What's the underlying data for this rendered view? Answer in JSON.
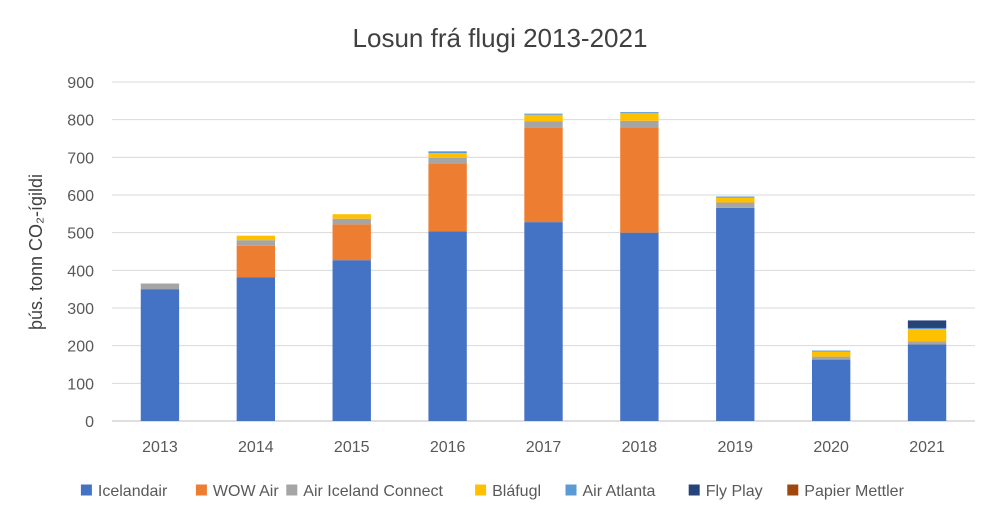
{
  "chart_data": {
    "type": "bar",
    "stacked": true,
    "title": "Losun frá flugi 2013-2021",
    "xlabel": "",
    "ylabel": "þús. tonn CO₂-ígildi",
    "ylim": [
      0,
      900
    ],
    "yticks": [
      0,
      100,
      200,
      300,
      400,
      500,
      600,
      700,
      800,
      900
    ],
    "grid": true,
    "legend_position": "bottom",
    "categories": [
      "2013",
      "2014",
      "2015",
      "2016",
      "2017",
      "2018",
      "2019",
      "2020",
      "2021"
    ],
    "series": [
      {
        "name": "Icelandair",
        "color": "#4472C4",
        "values": [
          350,
          381,
          427,
          503,
          528,
          500,
          566,
          163,
          203
        ]
      },
      {
        "name": "WOW Air",
        "color": "#ED7D31",
        "values": [
          0,
          84,
          95,
          181,
          250,
          280,
          0,
          0,
          0
        ]
      },
      {
        "name": "Air Iceland Connect",
        "color": "#A5A5A5",
        "values": [
          15,
          15,
          15,
          15,
          18,
          17,
          14,
          8,
          8
        ]
      },
      {
        "name": "Bláfugl",
        "color": "#FFC000",
        "values": [
          0,
          12,
          12,
          12,
          17,
          20,
          13,
          13,
          33
        ]
      },
      {
        "name": "Air Atlanta",
        "color": "#5B9BD5",
        "values": [
          0,
          0,
          0,
          5,
          3,
          3,
          3,
          3,
          3
        ]
      },
      {
        "name": "Fly Play",
        "color": "#264478",
        "values": [
          0,
          0,
          0,
          0,
          0,
          0,
          0,
          0,
          20
        ]
      },
      {
        "name": "Papier Mettler",
        "color": "#9E480E",
        "values": [
          0,
          0,
          0,
          0,
          0,
          0,
          0,
          0,
          0
        ]
      }
    ]
  }
}
